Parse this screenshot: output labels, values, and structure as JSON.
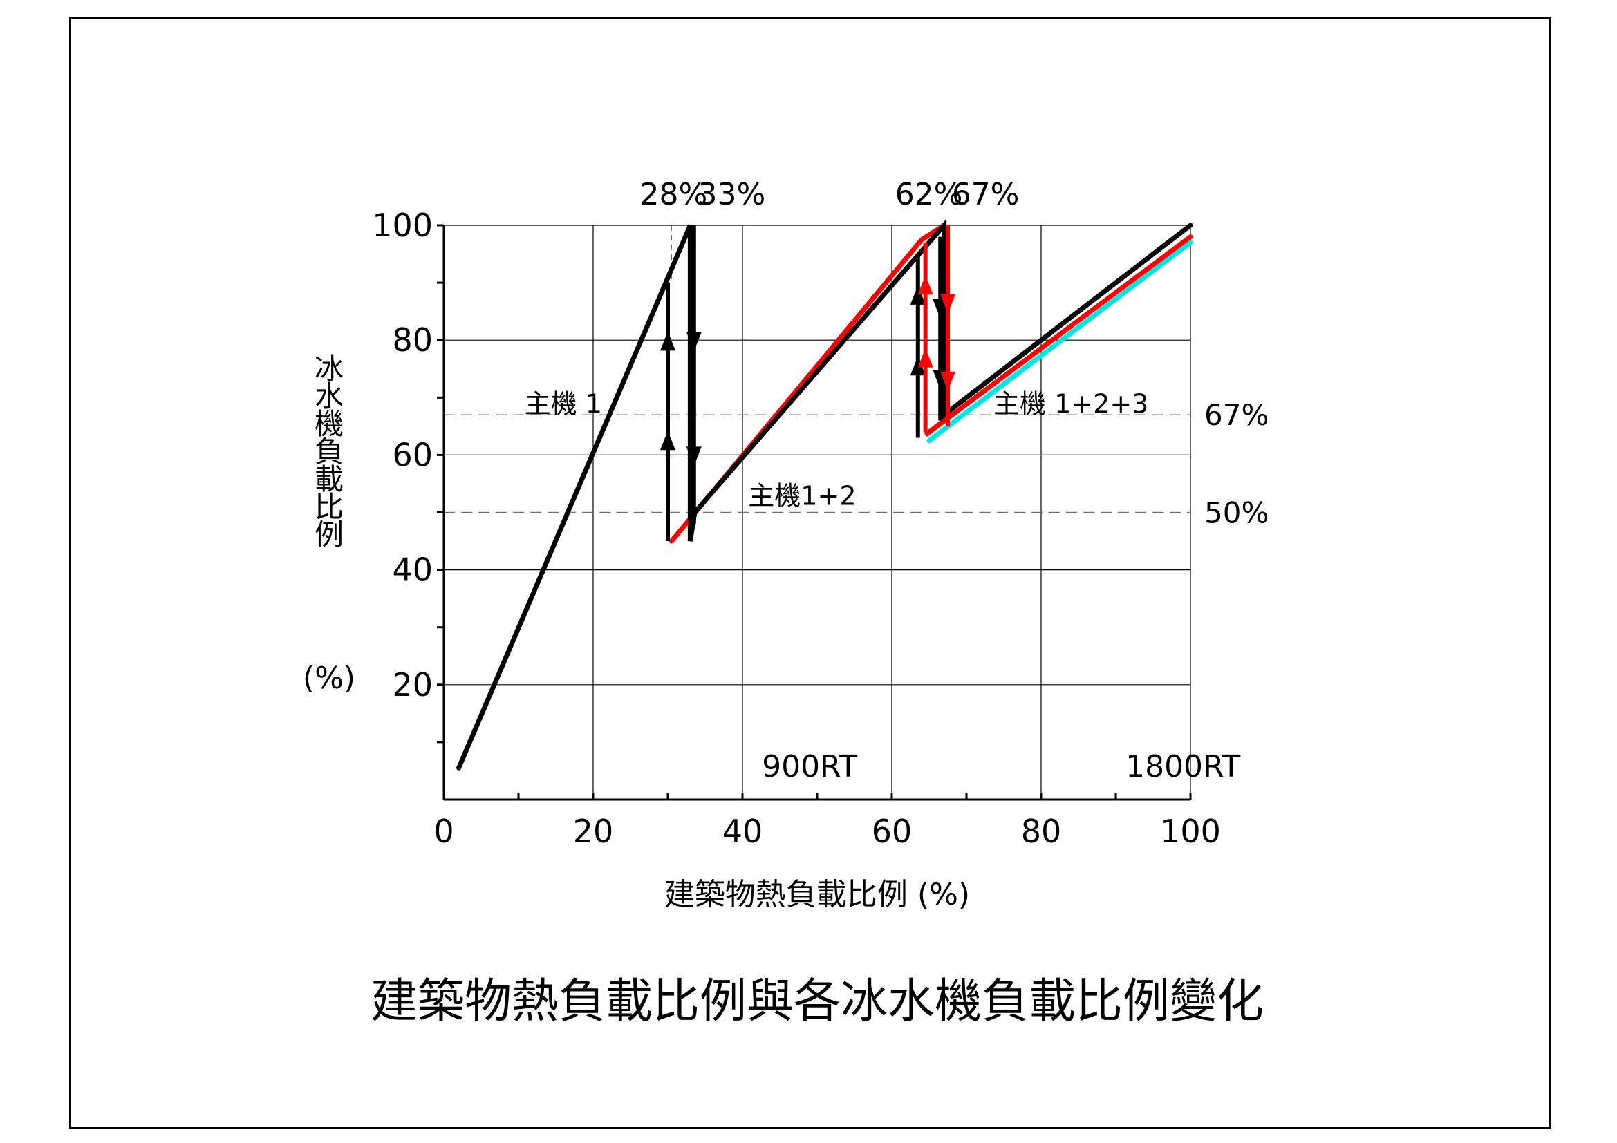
{
  "caption": "建築物熱負載比例與各冰水機負載比例變化",
  "colors": {
    "axis": "#000000",
    "grid": "#000000",
    "stage1": "#000000",
    "stage2": "#ff0000",
    "stage3": "#00e5e5",
    "dashed": "#707070"
  },
  "chart_data": {
    "type": "line",
    "title": "",
    "xlabel": "建築物熱負載比例 (%)",
    "ylabel": [
      "冰",
      "水",
      "機",
      "負",
      "載",
      "比",
      "例"
    ],
    "ylabel_unit": "(%)",
    "xlim": [
      0,
      100
    ],
    "ylim": [
      0,
      100
    ],
    "x_ticks": [
      0,
      20,
      40,
      60,
      80,
      100
    ],
    "y_ticks": [
      20,
      40,
      60,
      80,
      100
    ],
    "grid": true,
    "series": [
      {
        "name": "",
        "color": "#000000",
        "points": [
          [
            2,
            5.5
          ],
          [
            33,
            100
          ],
          [
            33,
            45
          ],
          [
            33.6,
            50
          ],
          [
            67,
            100
          ],
          [
            67,
            67
          ],
          [
            100,
            100
          ]
        ]
      },
      {
        "name": "",
        "color": "#ff0000",
        "points": [
          [
            30.5,
            45
          ],
          [
            64,
            97.5
          ],
          [
            67,
            100
          ],
          [
            67,
            66
          ],
          [
            64.5,
            63.5
          ],
          [
            100,
            98
          ]
        ]
      },
      {
        "name": "",
        "color": "#00e5e5",
        "points": [
          [
            65,
            62.5
          ],
          [
            100,
            97
          ]
        ]
      }
    ],
    "transitions": [
      {
        "x": 30,
        "y_from": 45,
        "y_to": 90,
        "dir": "up",
        "color": "#000000"
      },
      {
        "x": 33.5,
        "y_from": 100,
        "y_to": 48,
        "dir": "down",
        "color": "#000000"
      },
      {
        "x": 63.5,
        "y_from": 63,
        "y_to": 95,
        "dir": "up",
        "color": "#000000"
      },
      {
        "x": 64.5,
        "y_from": 64,
        "y_to": 97,
        "dir": "up",
        "color": "#ff0000"
      },
      {
        "x": 66.5,
        "y_from": 98,
        "y_to": 66,
        "dir": "down",
        "color": "#000000"
      },
      {
        "x": 67.5,
        "y_from": 100,
        "y_to": 65,
        "dir": "down",
        "color": "#ff0000"
      }
    ],
    "reference_lines": [
      {
        "y": 67,
        "label": "67%"
      },
      {
        "y": 50,
        "label": "50%"
      }
    ],
    "annotations": [
      {
        "text": "28%",
        "x": 28
      },
      {
        "text": "33%",
        "x": 33
      },
      {
        "text": "62%",
        "x": 62
      },
      {
        "text": "67%",
        "x": 67
      },
      {
        "text": "主機 1",
        "x": 16,
        "y": 69
      },
      {
        "text": "主機1+2",
        "x": 48,
        "y": 53
      },
      {
        "text": "主機 1+2+3",
        "x": 84,
        "y": 69
      },
      {
        "text": "900RT",
        "x": 49,
        "y": 4
      },
      {
        "text": "1800RT",
        "x": 99,
        "y": 4
      }
    ]
  }
}
